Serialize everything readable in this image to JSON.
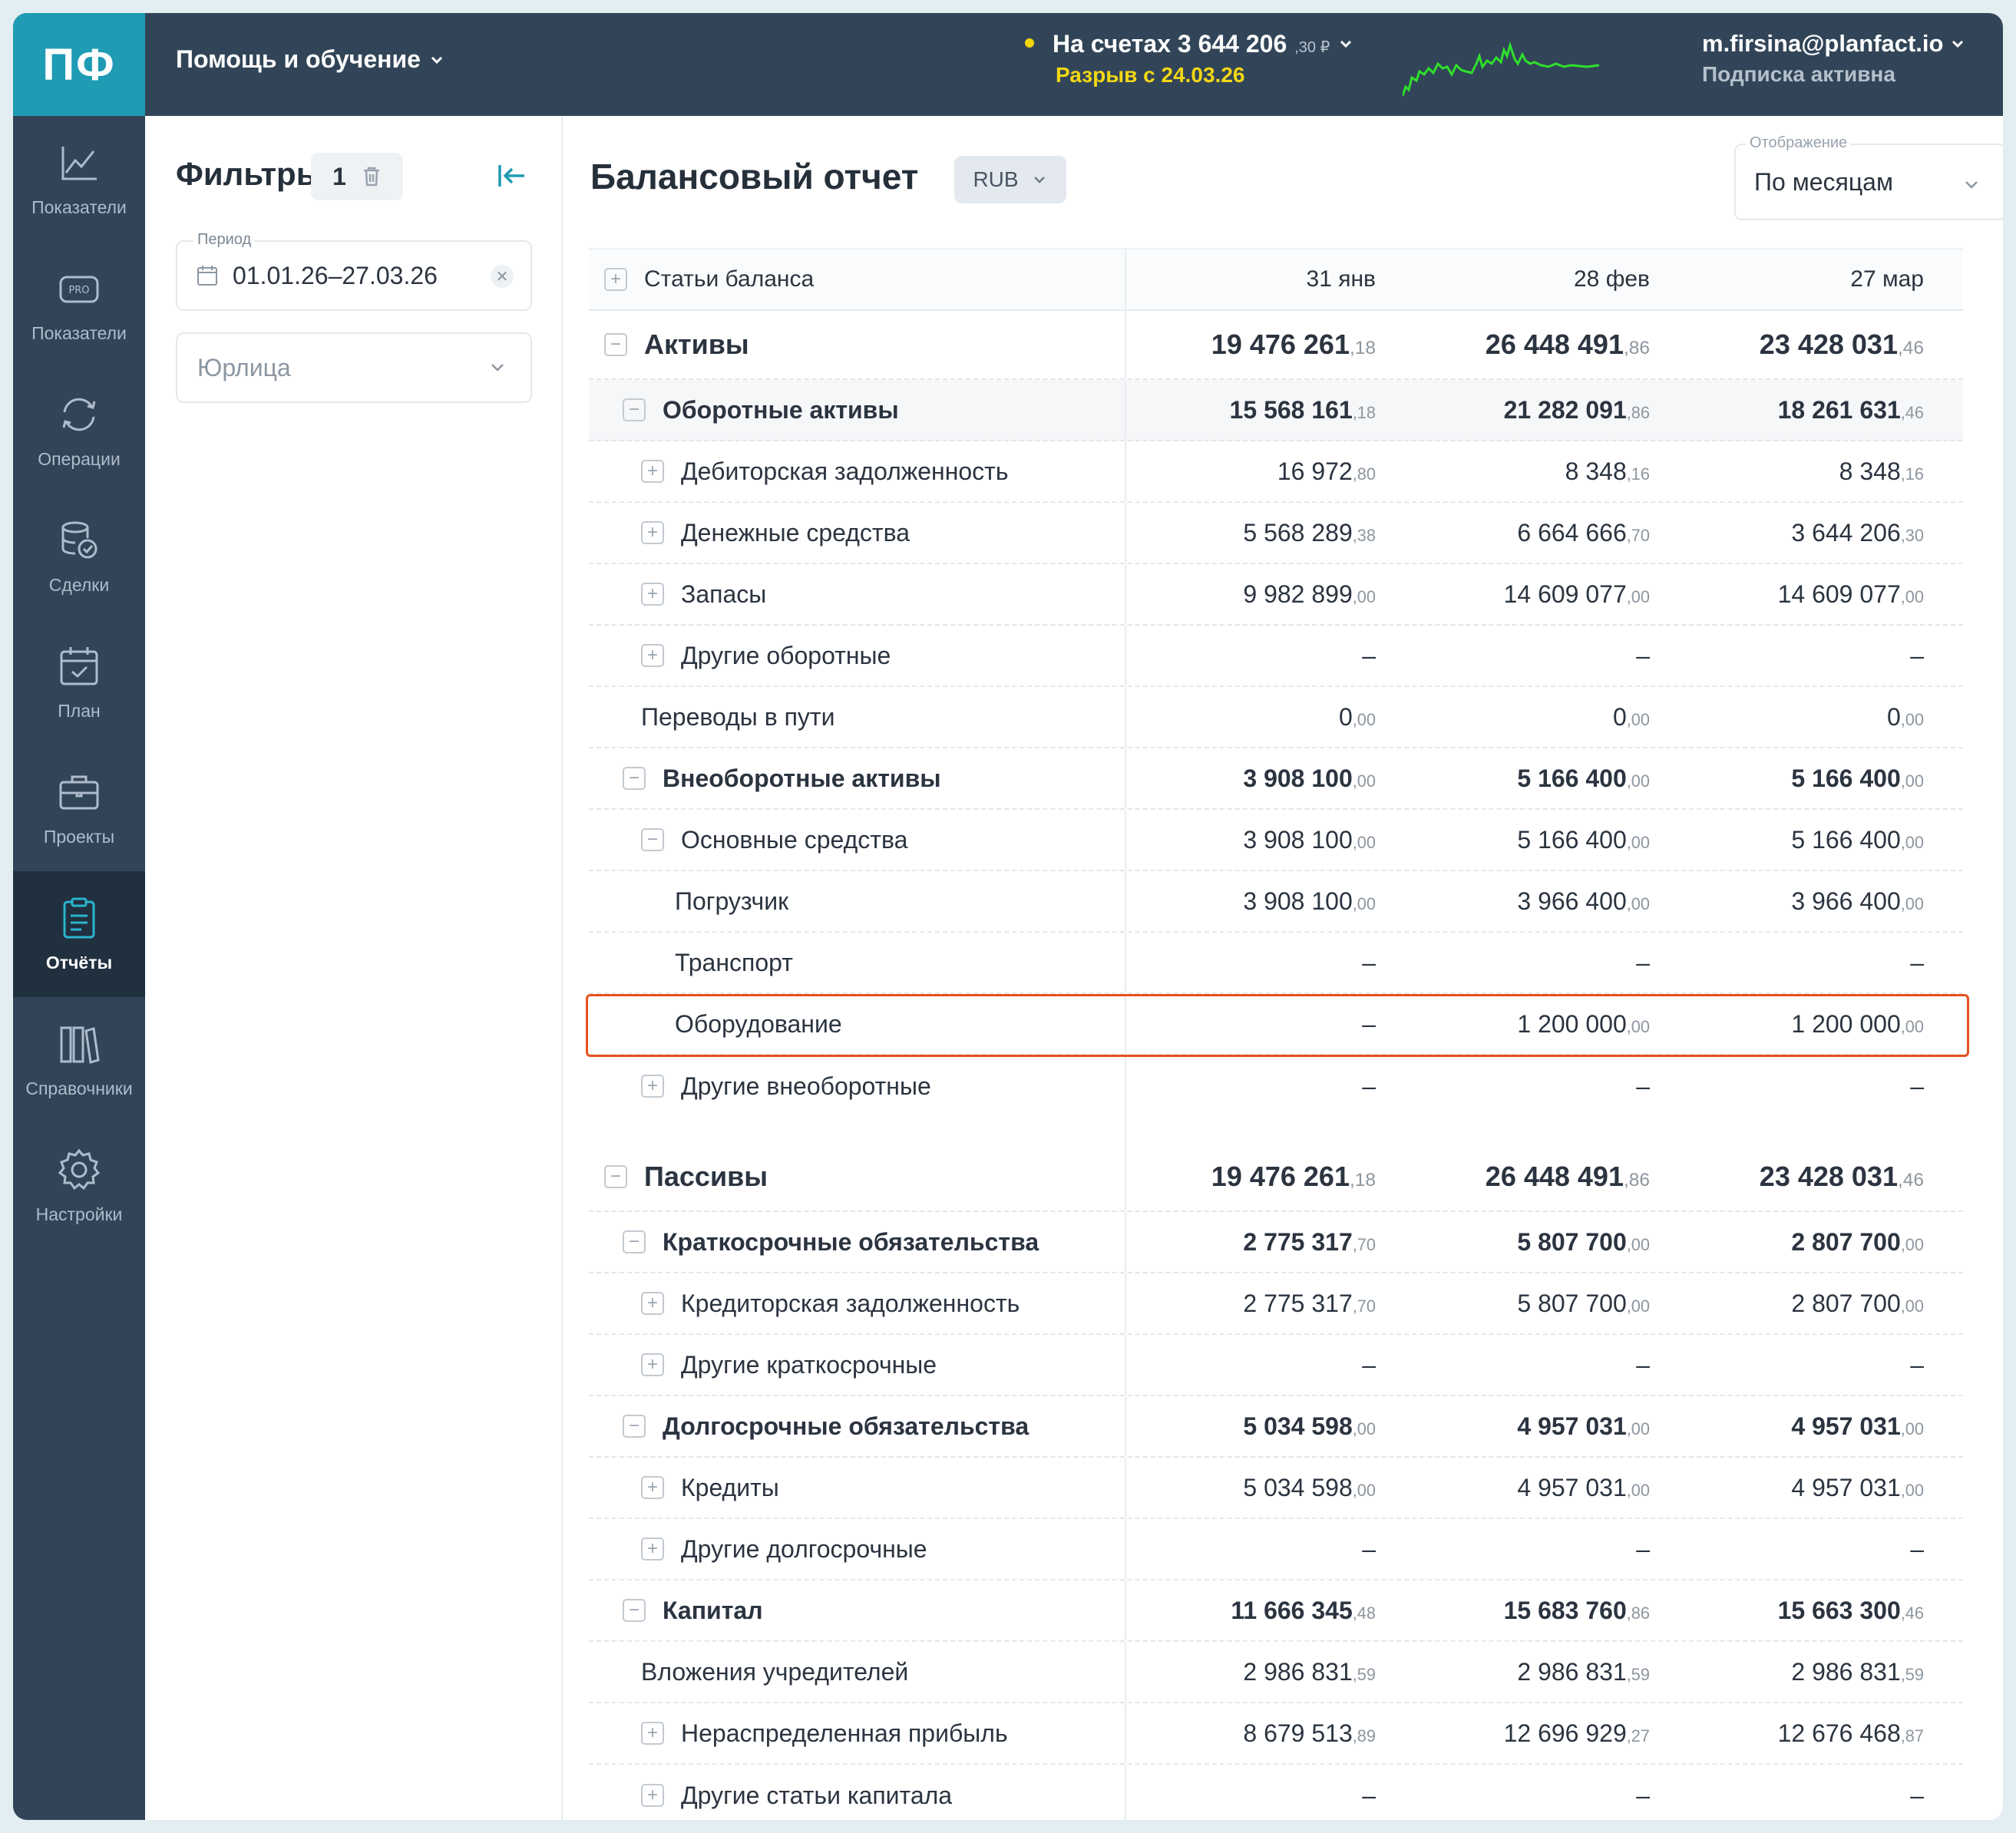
{
  "app": {
    "logo": "ПФ",
    "help_label": "Помощь и обучение",
    "balance_label": "На счетах 3 644 206",
    "balance_kop": ",30 ₽",
    "gap_label": "Разрыв с 24.03.26",
    "user_email": "m.firsina@planfact.io",
    "subscription": "Подписка активна",
    "colors": {
      "topbar": "#324558",
      "logo": "#1f9bb4",
      "accent": "#f2d714",
      "highlight": "#e8521f",
      "spark": "#2fe02b"
    }
  },
  "sidebar": {
    "items": [
      {
        "label": "Показатели",
        "icon": "chart-line-icon"
      },
      {
        "label": "Показатели",
        "icon": "pro-badge-icon"
      },
      {
        "label": "Операции",
        "icon": "refresh-icon"
      },
      {
        "label": "Сделки",
        "icon": "database-check-icon"
      },
      {
        "label": "План",
        "icon": "calendar-check-icon"
      },
      {
        "label": "Проекты",
        "icon": "briefcase-icon"
      },
      {
        "label": "Отчёты",
        "icon": "clipboard-icon",
        "active": true
      },
      {
        "label": "Справочники",
        "icon": "books-icon"
      },
      {
        "label": "Настройки",
        "icon": "gear-icon"
      }
    ]
  },
  "filters": {
    "title": "Фильтры",
    "count": "1",
    "period_label": "Период",
    "period_value": "01.01.26–27.03.26",
    "legal_placeholder": "Юрлица"
  },
  "report": {
    "title": "Балансовый отчет",
    "currency": "RUB",
    "display_label": "Отображение",
    "display_value": "По месяцам",
    "header": {
      "name": "Статьи баланса",
      "cols": [
        "31 янв",
        "28 фев",
        "27 мар"
      ]
    },
    "rows": [
      {
        "name": "Активы",
        "level": 0,
        "toggle": "−",
        "style": "big",
        "vals": [
          [
            "19 476 261",
            ",18"
          ],
          [
            "26 448 491",
            ",86"
          ],
          [
            "23 428 031",
            ",46"
          ]
        ]
      },
      {
        "name": "Оборотные активы",
        "level": 1,
        "toggle": "−",
        "style": "bold shade",
        "vals": [
          [
            "15 568 161",
            ",18"
          ],
          [
            "21 282 091",
            ",86"
          ],
          [
            "18 261 631",
            ",46"
          ]
        ]
      },
      {
        "name": "Дебиторская задолженность",
        "level": 2,
        "toggle": "+",
        "vals": [
          [
            "16 972",
            ",80"
          ],
          [
            "8 348",
            ",16"
          ],
          [
            "8 348",
            ",16"
          ]
        ]
      },
      {
        "name": "Денежные средства",
        "level": 2,
        "toggle": "+",
        "vals": [
          [
            "5 568 289",
            ",38"
          ],
          [
            "6 664 666",
            ",70"
          ],
          [
            "3 644 206",
            ",30"
          ]
        ]
      },
      {
        "name": "Запасы",
        "level": 2,
        "toggle": "+",
        "vals": [
          [
            "9 982 899",
            ",00"
          ],
          [
            "14 609 077",
            ",00"
          ],
          [
            "14 609 077",
            ",00"
          ]
        ]
      },
      {
        "name": "Другие оборотные",
        "level": 2,
        "toggle": "+",
        "vals": [
          [
            "–",
            ""
          ],
          [
            "–",
            ""
          ],
          [
            "–",
            ""
          ]
        ]
      },
      {
        "name": "Переводы в пути",
        "level": 2,
        "toggle": "",
        "vals": [
          [
            "0",
            ",00"
          ],
          [
            "0",
            ",00"
          ],
          [
            "0",
            ",00"
          ]
        ]
      },
      {
        "name": "Внеоборотные активы",
        "level": 1,
        "toggle": "−",
        "style": "bold",
        "vals": [
          [
            "3 908 100",
            ",00"
          ],
          [
            "5 166 400",
            ",00"
          ],
          [
            "5 166 400",
            ",00"
          ]
        ]
      },
      {
        "name": "Основные средства",
        "level": 2,
        "toggle": "−",
        "vals": [
          [
            "3 908 100",
            ",00"
          ],
          [
            "5 166 400",
            ",00"
          ],
          [
            "5 166 400",
            ",00"
          ]
        ]
      },
      {
        "name": "Погрузчик",
        "level": 3,
        "toggle": "",
        "vals": [
          [
            "3 908 100",
            ",00"
          ],
          [
            "3 966 400",
            ",00"
          ],
          [
            "3 966 400",
            ",00"
          ]
        ]
      },
      {
        "name": "Транспорт",
        "level": 3,
        "toggle": "",
        "vals": [
          [
            "–",
            ""
          ],
          [
            "–",
            ""
          ],
          [
            "–",
            ""
          ]
        ]
      },
      {
        "name": "Оборудование",
        "level": 3,
        "toggle": "",
        "vals": [
          [
            "–",
            ""
          ],
          [
            "1 200 000",
            ",00"
          ],
          [
            "1 200 000",
            ",00"
          ]
        ]
      },
      {
        "name": "Другие внеоборотные",
        "level": 2,
        "toggle": "+",
        "style": "nob",
        "vals": [
          [
            "–",
            ""
          ],
          [
            "–",
            ""
          ],
          [
            "–",
            ""
          ]
        ]
      },
      {
        "name": "",
        "level": 0,
        "toggle": "",
        "style": "spacer nob",
        "vals": [
          [
            "",
            ""
          ],
          [
            "",
            ""
          ],
          [
            "",
            ""
          ]
        ]
      },
      {
        "name": "Пассивы",
        "level": 0,
        "toggle": "−",
        "style": "big",
        "vals": [
          [
            "19 476 261",
            ",18"
          ],
          [
            "26 448 491",
            ",86"
          ],
          [
            "23 428 031",
            ",46"
          ]
        ]
      },
      {
        "name": "Краткосрочные обязательства",
        "level": 1,
        "toggle": "−",
        "style": "bold",
        "vals": [
          [
            "2 775 317",
            ",70"
          ],
          [
            "5 807 700",
            ",00"
          ],
          [
            "2 807 700",
            ",00"
          ]
        ]
      },
      {
        "name": "Кредиторская задолженность",
        "level": 2,
        "toggle": "+",
        "vals": [
          [
            "2 775 317",
            ",70"
          ],
          [
            "5 807 700",
            ",00"
          ],
          [
            "2 807 700",
            ",00"
          ]
        ]
      },
      {
        "name": "Другие краткосрочные",
        "level": 2,
        "toggle": "+",
        "vals": [
          [
            "–",
            ""
          ],
          [
            "–",
            ""
          ],
          [
            "–",
            ""
          ]
        ]
      },
      {
        "name": "Долгосрочные обязательства",
        "level": 1,
        "toggle": "−",
        "style": "bold",
        "vals": [
          [
            "5 034 598",
            ",00"
          ],
          [
            "4 957 031",
            ",00"
          ],
          [
            "4 957 031",
            ",00"
          ]
        ]
      },
      {
        "name": "Кредиты",
        "level": 2,
        "toggle": "+",
        "vals": [
          [
            "5 034 598",
            ",00"
          ],
          [
            "4 957 031",
            ",00"
          ],
          [
            "4 957 031",
            ",00"
          ]
        ]
      },
      {
        "name": "Другие долгосрочные",
        "level": 2,
        "toggle": "+",
        "vals": [
          [
            "–",
            ""
          ],
          [
            "–",
            ""
          ],
          [
            "–",
            ""
          ]
        ]
      },
      {
        "name": "Капитал",
        "level": 1,
        "toggle": "−",
        "style": "bold",
        "vals": [
          [
            "11 666 345",
            ",48"
          ],
          [
            "15 683 760",
            ",86"
          ],
          [
            "15 663 300",
            ",46"
          ]
        ]
      },
      {
        "name": "Вложения учредителей",
        "level": 2,
        "toggle": "",
        "vals": [
          [
            "2 986 831",
            ",59"
          ],
          [
            "2 986 831",
            ",59"
          ],
          [
            "2 986 831",
            ",59"
          ]
        ]
      },
      {
        "name": "Нераспределенная прибыль",
        "level": 2,
        "toggle": "+",
        "vals": [
          [
            "8 679 513",
            ",89"
          ],
          [
            "12 696 929",
            ",27"
          ],
          [
            "12 676 468",
            ",87"
          ]
        ]
      },
      {
        "name": "Другие статьи капитала",
        "level": 2,
        "toggle": "+",
        "style": "nob",
        "vals": [
          [
            "–",
            ""
          ],
          [
            "–",
            ""
          ],
          [
            "–",
            ""
          ]
        ]
      }
    ]
  }
}
